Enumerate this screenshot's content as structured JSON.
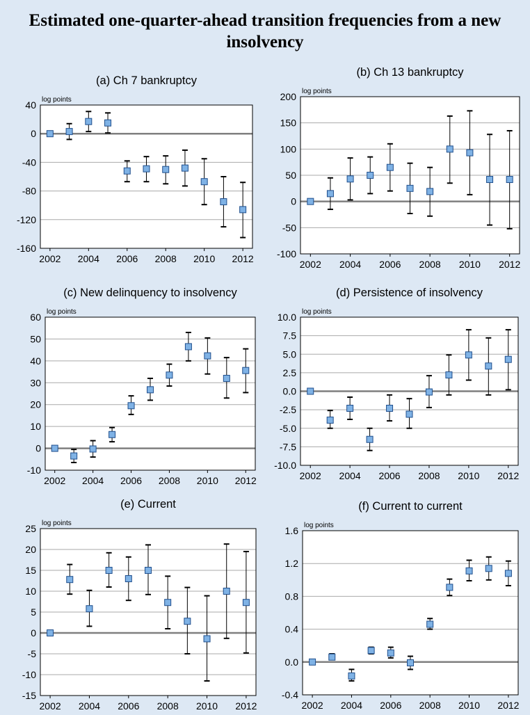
{
  "figure": {
    "title": "Estimated one-quarter-ahead transition frequencies from a new insolvency",
    "colors": {
      "background": "#dde8f4",
      "plot_bg": "#ffffff",
      "marker": "#7fb2e5",
      "marker_edge": "#1f4e8c",
      "gridline": "#a9a9a9",
      "zero_line": "#7f7f7f",
      "error_bar": "#000000"
    }
  },
  "chart_data": [
    {
      "type": "scatter",
      "title": "(a) Ch 7 bankruptcy",
      "ylabel": "log points",
      "ylim": [
        -160,
        40
      ],
      "yticks": [
        40,
        0,
        -40,
        -80,
        -120,
        -160
      ],
      "xlim": [
        2001.5,
        2012.5
      ],
      "xticks": [
        2002,
        2004,
        2006,
        2008,
        2010,
        2012
      ],
      "x": [
        2002,
        2003,
        2004,
        2005,
        2006,
        2007,
        2008,
        2009,
        2010,
        2011,
        2012
      ],
      "y": [
        0,
        3,
        17,
        15,
        -52,
        -49,
        -50,
        -48,
        -67,
        -95,
        -106
      ],
      "y_low": [
        0,
        -8,
        3,
        1,
        -67,
        -67,
        -70,
        -73,
        -99,
        -130,
        -145
      ],
      "y_high": [
        0,
        14,
        31,
        29,
        -38,
        -32,
        -31,
        -23,
        -35,
        -60,
        -68
      ]
    },
    {
      "type": "scatter",
      "title": "(b) Ch 13 bankruptcy",
      "ylabel": "log points",
      "ylim": [
        -100,
        200
      ],
      "yticks": [
        200,
        150,
        100,
        50,
        0,
        -50,
        -100
      ],
      "xlim": [
        2001.5,
        2012.5
      ],
      "xticks": [
        2002,
        2004,
        2006,
        2008,
        2010,
        2012
      ],
      "x": [
        2002,
        2003,
        2004,
        2005,
        2006,
        2007,
        2008,
        2009,
        2010,
        2011,
        2012
      ],
      "y": [
        0,
        15,
        43,
        50,
        65,
        25,
        19,
        100,
        93,
        42,
        42
      ],
      "y_low": [
        0,
        -15,
        3,
        15,
        20,
        -23,
        -28,
        35,
        13,
        -45,
        -52
      ],
      "y_high": [
        0,
        45,
        83,
        85,
        110,
        73,
        65,
        163,
        173,
        128,
        135
      ]
    },
    {
      "type": "scatter",
      "title": "(c) New delinquency to insolvency",
      "ylabel": "log points",
      "ylim": [
        -10,
        60
      ],
      "yticks": [
        60,
        50,
        40,
        30,
        20,
        10,
        0,
        -10
      ],
      "xlim": [
        2001.5,
        2012.5
      ],
      "xticks": [
        2002,
        2004,
        2006,
        2008,
        2010,
        2012
      ],
      "x": [
        2002,
        2003,
        2004,
        2005,
        2006,
        2007,
        2008,
        2009,
        2010,
        2011,
        2012
      ],
      "y": [
        0,
        -3.5,
        -0.3,
        6.3,
        19.5,
        26.8,
        33.5,
        46.5,
        42.3,
        32,
        35.6
      ],
      "y_low": [
        0,
        -6.5,
        -4,
        3,
        15.5,
        22,
        28.5,
        40,
        34,
        23,
        25.5
      ],
      "y_high": [
        0,
        -0.5,
        3.5,
        9.5,
        24,
        32,
        38.5,
        53,
        50.5,
        41.5,
        45.5
      ]
    },
    {
      "type": "scatter",
      "title": "(d) Persistence of insolvency",
      "ylabel": "log points",
      "ylim": [
        -10,
        10
      ],
      "yticks": [
        "10.0",
        "7.5",
        "5.0",
        "2.5",
        "0.0",
        "-2.5",
        "-5.0",
        "-7.5",
        "-10.0"
      ],
      "xlim": [
        2001.5,
        2012.5
      ],
      "xticks": [
        2002,
        2004,
        2006,
        2008,
        2010,
        2012
      ],
      "x": [
        2002,
        2003,
        2004,
        2005,
        2006,
        2007,
        2008,
        2009,
        2010,
        2011,
        2012
      ],
      "y": [
        0,
        -3.9,
        -2.3,
        -6.5,
        -2.3,
        -3.1,
        -0.1,
        2.2,
        4.9,
        3.4,
        4.3
      ],
      "y_low": [
        0,
        -5.0,
        -3.8,
        -8.0,
        -4.0,
        -5.0,
        -2.2,
        -0.5,
        1.5,
        -0.5,
        0.2
      ],
      "y_high": [
        0,
        -2.6,
        -0.8,
        -5.0,
        -0.5,
        -1.0,
        2.1,
        4.9,
        8.3,
        7.2,
        8.3
      ]
    },
    {
      "type": "scatter",
      "title": "(e) Current",
      "ylabel": "log points",
      "ylim": [
        -15,
        25
      ],
      "yticks": [
        25,
        20,
        15,
        10,
        5,
        0,
        -5,
        -10,
        -15
      ],
      "xlim": [
        2001.5,
        2012.5
      ],
      "xticks": [
        2002,
        2004,
        2006,
        2008,
        2010,
        2012
      ],
      "x": [
        2002,
        2003,
        2004,
        2005,
        2006,
        2007,
        2008,
        2009,
        2010,
        2011,
        2012
      ],
      "y": [
        0,
        12.8,
        5.8,
        15,
        13,
        15,
        7.3,
        2.8,
        -1.4,
        10,
        7.3
      ],
      "y_low": [
        0,
        9.3,
        1.6,
        11,
        7.8,
        9.2,
        1,
        -5,
        -11.5,
        -1.3,
        -4.8
      ],
      "y_high": [
        0,
        16.4,
        10.2,
        19.2,
        18.2,
        21.1,
        13.6,
        10.9,
        8.9,
        21.3,
        19.5
      ]
    },
    {
      "type": "scatter",
      "title": "(f) Current to current",
      "ylabel": "log points",
      "ylim": [
        -0.4,
        1.6
      ],
      "yticks": [
        "1.6",
        "1.2",
        "0.8",
        "0.4",
        "0.0",
        "-0.4"
      ],
      "xlim": [
        2001.5,
        2012.5
      ],
      "xticks": [
        2002,
        2004,
        2006,
        2008,
        2010,
        2012
      ],
      "x": [
        2002,
        2003,
        2004,
        2005,
        2006,
        2007,
        2008,
        2009,
        2010,
        2011,
        2012
      ],
      "y": [
        0,
        0.06,
        -0.17,
        0.14,
        0.11,
        -0.01,
        0.46,
        0.91,
        1.11,
        1.14,
        1.08
      ],
      "y_low": [
        0,
        0.03,
        -0.23,
        0.1,
        0.05,
        -0.09,
        0.4,
        0.81,
        0.99,
        1.0,
        0.93
      ],
      "y_high": [
        0,
        0.1,
        -0.09,
        0.18,
        0.18,
        0.07,
        0.53,
        1.01,
        1.24,
        1.28,
        1.23
      ]
    }
  ]
}
